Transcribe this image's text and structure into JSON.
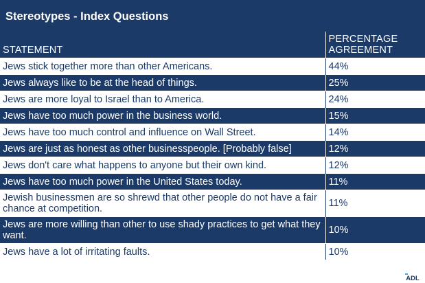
{
  "title": "Stereotypes - Index Questions",
  "table": {
    "columns": [
      "STATEMENT",
      "PERCENTAGE AGREEMENT"
    ],
    "rows": [
      {
        "statement": "Jews stick together more than other Americans.",
        "pct": "44%"
      },
      {
        "statement": "Jews always like to be at the head of things.",
        "pct": "25%"
      },
      {
        "statement": "Jews are more loyal to Israel than to America.",
        "pct": "24%"
      },
      {
        "statement": "Jews have too much power in the business world.",
        "pct": "15%"
      },
      {
        "statement": "Jews have too much control and influence on Wall Street.",
        "pct": "14%"
      },
      {
        "statement": "Jews are just as honest as other businesspeople. [Probably false]",
        "pct": "12%"
      },
      {
        "statement": "Jews don't care what happens to anyone but their own kind.",
        "pct": "12%"
      },
      {
        "statement": "Jews have too much power in the United States today.",
        "pct": "11%"
      },
      {
        "statement": "Jewish businessmen are so shrewd that other people do not have a fair chance at competition.",
        "pct": "11%"
      },
      {
        "statement": "Jews are more willing than other to use shady practices to get what they want.",
        "pct": "10%"
      },
      {
        "statement": "Jews have a lot of irritating faults.",
        "pct": "10%"
      }
    ]
  },
  "logo": {
    "text": "ADL",
    "color": "#1b3a68",
    "accent": "#4aa3df"
  },
  "colors": {
    "navy": "#1b3a68",
    "white": "#ffffff"
  }
}
